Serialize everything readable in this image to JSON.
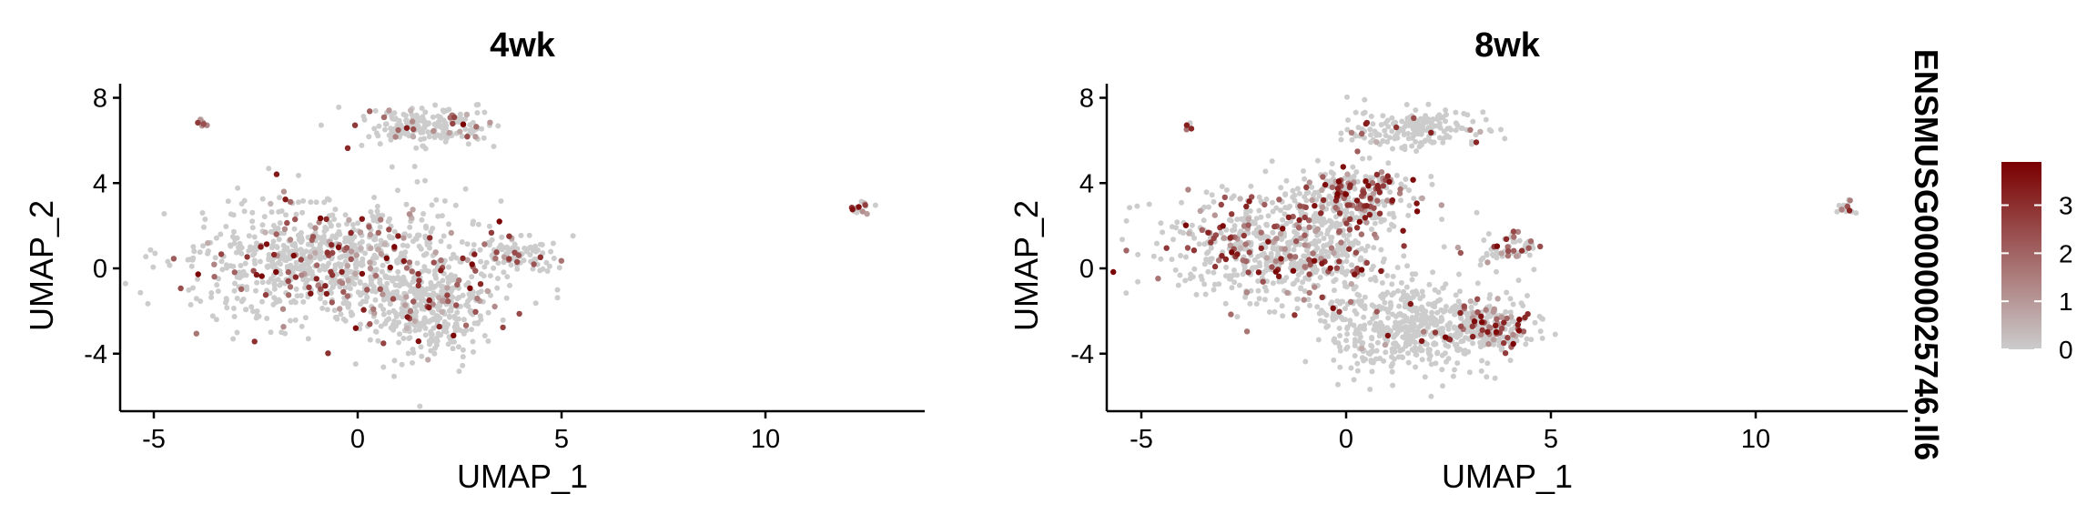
{
  "chart_data": [
    {
      "type": "scatter",
      "title": "4wk",
      "xlabel": "UMAP_1",
      "ylabel": "UMAP_2",
      "xlim": [
        -6,
        14
      ],
      "ylim": [
        -7,
        9
      ],
      "xticks": [
        "-5",
        "0",
        "5",
        "10"
      ],
      "yticks": [
        "-4",
        "0",
        "4",
        "8"
      ],
      "grid": false,
      "clusters": [
        {
          "cx": -0.5,
          "cy": 0.2,
          "sx": 2.3,
          "sy": 1.8,
          "n": 900,
          "expr_frac": 0.18
        },
        {
          "cx": 1.7,
          "cy": -2.0,
          "sx": 0.9,
          "sy": 1.4,
          "n": 320,
          "expr_frac": 0.07
        },
        {
          "cx": 1.7,
          "cy": 6.7,
          "sx": 1.0,
          "sy": 0.6,
          "n": 200,
          "expr_frac": 0.12
        },
        {
          "cx": 3.8,
          "cy": 0.7,
          "sx": 0.6,
          "sy": 0.5,
          "n": 90,
          "expr_frac": 0.18
        },
        {
          "cx": -3.8,
          "cy": 6.9,
          "sx": 0.1,
          "sy": 0.2,
          "n": 8,
          "expr_frac": 0.6
        },
        {
          "cx": 12.3,
          "cy": 2.8,
          "sx": 0.15,
          "sy": 0.2,
          "n": 16,
          "expr_frac": 0.45
        }
      ]
    },
    {
      "type": "scatter",
      "title": "8wk",
      "xlabel": "UMAP_1",
      "ylabel": "UMAP_2",
      "xlim": [
        -6,
        14
      ],
      "ylim": [
        -7,
        9
      ],
      "xticks": [
        "-5",
        "0",
        "5",
        "10"
      ],
      "yticks": [
        "-4",
        "0",
        "4",
        "8"
      ],
      "grid": false,
      "clusters": [
        {
          "cx": -1.5,
          "cy": 1.0,
          "sx": 1.8,
          "sy": 1.6,
          "n": 700,
          "expr_frac": 0.22
        },
        {
          "cx": 0.2,
          "cy": 3.3,
          "sx": 1.0,
          "sy": 0.8,
          "n": 260,
          "expr_frac": 0.35
        },
        {
          "cx": 1.5,
          "cy": -2.8,
          "sx": 1.3,
          "sy": 1.3,
          "n": 500,
          "expr_frac": 0.04
        },
        {
          "cx": 3.6,
          "cy": -2.7,
          "sx": 0.6,
          "sy": 0.7,
          "n": 200,
          "expr_frac": 0.25
        },
        {
          "cx": 1.6,
          "cy": 6.6,
          "sx": 1.1,
          "sy": 0.6,
          "n": 180,
          "expr_frac": 0.07
        },
        {
          "cx": 3.9,
          "cy": 1.0,
          "sx": 0.5,
          "sy": 0.6,
          "n": 60,
          "expr_frac": 0.25
        },
        {
          "cx": -3.8,
          "cy": 6.8,
          "sx": 0.1,
          "sy": 0.2,
          "n": 6,
          "expr_frac": 0.6
        },
        {
          "cx": 12.2,
          "cy": 2.8,
          "sx": 0.2,
          "sy": 0.2,
          "n": 18,
          "expr_frac": 0.2
        }
      ]
    }
  ],
  "legend": {
    "title": "ENSMUSG00000025746.Il6",
    "ticks": [
      0,
      1,
      2,
      3
    ],
    "range": [
      0,
      3.9
    ],
    "colors": {
      "low": "#cccccc",
      "high": "#7a0000"
    }
  }
}
